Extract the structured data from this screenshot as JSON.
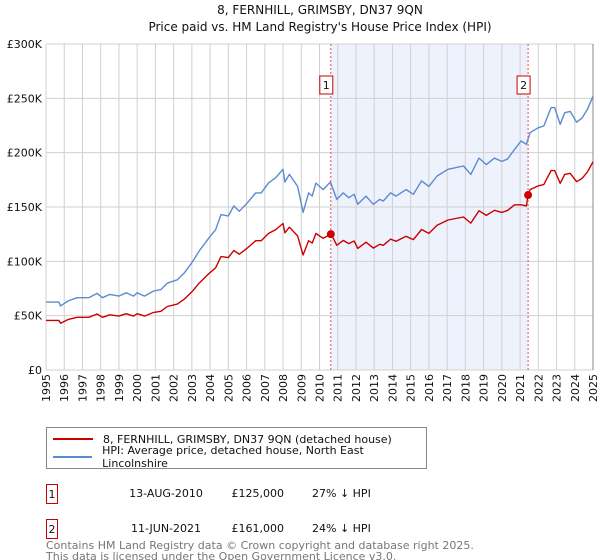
{
  "chart_data": {
    "type": "line",
    "title": "8, FERNHILL, GRIMSBY, DN37 9QN",
    "subtitle": "Price paid vs. HM Land Registry's House Price Index (HPI)",
    "xlabel": "",
    "ylabel": "",
    "xlim": [
      1995,
      2025
    ],
    "ylim": [
      0,
      300000
    ],
    "grid": true,
    "y_ticks": [
      {
        "v": 0,
        "label": "£0"
      },
      {
        "v": 50000,
        "label": "£50K"
      },
      {
        "v": 100000,
        "label": "£100K"
      },
      {
        "v": 150000,
        "label": "£150K"
      },
      {
        "v": 200000,
        "label": "£200K"
      },
      {
        "v": 250000,
        "label": "£250K"
      },
      {
        "v": 300000,
        "label": "£300K"
      }
    ],
    "x_ticks": [
      "1995",
      "1996",
      "1997",
      "1998",
      "1999",
      "2000",
      "2001",
      "2002",
      "2003",
      "2004",
      "2005",
      "2006",
      "2007",
      "2008",
      "2009",
      "2010",
      "2011",
      "2012",
      "2013",
      "2014",
      "2015",
      "2016",
      "2017",
      "2018",
      "2019",
      "2020",
      "2021",
      "2022",
      "2023",
      "2024",
      "2025"
    ],
    "shaded_range": [
      2010.62,
      2021.44
    ],
    "colors": {
      "property": "#cc0000",
      "hpi": "#5b8bd0",
      "shade": "#eef2fc",
      "marker_line": "#e05050"
    },
    "series": [
      {
        "name": "8, FERNHILL, GRIMSBY, DN37 9QN (detached house)",
        "color": "#cc0000",
        "points": [
          [
            1995,
            45600
          ],
          [
            1995.7,
            45600
          ],
          [
            1995.8,
            43000
          ],
          [
            1996.2,
            46400
          ],
          [
            1996.7,
            48500
          ],
          [
            1997.35,
            48500
          ],
          [
            1997.8,
            51500
          ],
          [
            1998.1,
            48500
          ],
          [
            1998.5,
            50800
          ],
          [
            1999,
            49600
          ],
          [
            1999.4,
            51800
          ],
          [
            1999.8,
            49600
          ],
          [
            2000,
            51800
          ],
          [
            2000.4,
            49600
          ],
          [
            2000.9,
            53000
          ],
          [
            2001.3,
            54000
          ],
          [
            2001.65,
            58400
          ],
          [
            2002.2,
            60600
          ],
          [
            2002.6,
            65400
          ],
          [
            2003,
            72000
          ],
          [
            2003.4,
            80000
          ],
          [
            2003.95,
            89000
          ],
          [
            2004.3,
            94000
          ],
          [
            2004.6,
            104400
          ],
          [
            2005,
            103400
          ],
          [
            2005.3,
            110000
          ],
          [
            2005.6,
            106600
          ],
          [
            2006.05,
            112400
          ],
          [
            2006.5,
            119000
          ],
          [
            2006.8,
            119000
          ],
          [
            2007.2,
            125600
          ],
          [
            2007.6,
            129200
          ],
          [
            2008,
            134800
          ],
          [
            2008.1,
            126300
          ],
          [
            2008.35,
            131400
          ],
          [
            2008.8,
            123400
          ],
          [
            2009.1,
            105800
          ],
          [
            2009.4,
            119000
          ],
          [
            2009.6,
            116800
          ],
          [
            2009.8,
            125600
          ],
          [
            2010.2,
            121200
          ],
          [
            2010.62,
            125000
          ],
          [
            2010.75,
            121300
          ],
          [
            2010.95,
            114800
          ],
          [
            2011.3,
            119300
          ],
          [
            2011.6,
            116300
          ],
          [
            2011.9,
            118700
          ],
          [
            2012.1,
            111900
          ],
          [
            2012.55,
            117600
          ],
          [
            2012.95,
            112200
          ],
          [
            2013.3,
            115700
          ],
          [
            2013.5,
            114800
          ],
          [
            2013.9,
            120500
          ],
          [
            2014.2,
            118400
          ],
          [
            2014.75,
            123000
          ],
          [
            2015.15,
            120000
          ],
          [
            2015.6,
            129300
          ],
          [
            2016,
            125700
          ],
          [
            2016.45,
            133200
          ],
          [
            2017.05,
            138000
          ],
          [
            2017.9,
            140800
          ],
          [
            2018.3,
            135200
          ],
          [
            2018.75,
            146600
          ],
          [
            2019.15,
            142300
          ],
          [
            2019.6,
            147000
          ],
          [
            2020,
            145000
          ],
          [
            2020.3,
            146700
          ],
          [
            2020.7,
            152000
          ],
          [
            2021.05,
            152000
          ],
          [
            2021.35,
            151000
          ],
          [
            2021.44,
            161000
          ],
          [
            2021.55,
            166000
          ],
          [
            2022,
            169500
          ],
          [
            2022.3,
            170600
          ],
          [
            2022.7,
            183500
          ],
          [
            2022.9,
            183500
          ],
          [
            2023.2,
            171800
          ],
          [
            2023.45,
            180000
          ],
          [
            2023.75,
            181000
          ],
          [
            2024.1,
            173300
          ],
          [
            2024.4,
            176300
          ],
          [
            2024.7,
            182400
          ],
          [
            2025,
            191500
          ]
        ]
      },
      {
        "name": "HPI: Average price, detached house, North East Lincolnshire",
        "color": "#5b8bd0",
        "points": [
          [
            1995,
            62500
          ],
          [
            1995.7,
            62500
          ],
          [
            1995.8,
            59000
          ],
          [
            1996.2,
            63500
          ],
          [
            1996.7,
            66500
          ],
          [
            1997.35,
            66500
          ],
          [
            1997.8,
            70500
          ],
          [
            1998.1,
            66500
          ],
          [
            1998.5,
            69600
          ],
          [
            1999,
            68000
          ],
          [
            1999.4,
            71000
          ],
          [
            1999.8,
            68000
          ],
          [
            2000,
            71000
          ],
          [
            2000.4,
            68000
          ],
          [
            2000.9,
            72700
          ],
          [
            2001.3,
            74000
          ],
          [
            2001.65,
            80000
          ],
          [
            2002.2,
            83000
          ],
          [
            2002.6,
            89600
          ],
          [
            2003,
            98800
          ],
          [
            2003.4,
            109500
          ],
          [
            2003.95,
            121800
          ],
          [
            2004.3,
            129000
          ],
          [
            2004.6,
            143000
          ],
          [
            2005,
            141700
          ],
          [
            2005.3,
            151000
          ],
          [
            2005.6,
            146000
          ],
          [
            2006.05,
            154000
          ],
          [
            2006.5,
            163000
          ],
          [
            2006.8,
            163000
          ],
          [
            2007.2,
            172000
          ],
          [
            2007.6,
            177000
          ],
          [
            2008,
            184700
          ],
          [
            2008.1,
            173000
          ],
          [
            2008.35,
            180000
          ],
          [
            2008.8,
            169000
          ],
          [
            2009.1,
            145000
          ],
          [
            2009.4,
            163000
          ],
          [
            2009.6,
            160000
          ],
          [
            2009.8,
            172000
          ],
          [
            2010.2,
            166000
          ],
          [
            2010.6,
            173000
          ],
          [
            2010.75,
            166000
          ],
          [
            2010.95,
            157000
          ],
          [
            2011.3,
            163000
          ],
          [
            2011.6,
            158600
          ],
          [
            2011.9,
            161700
          ],
          [
            2012.1,
            152500
          ],
          [
            2012.55,
            160000
          ],
          [
            2012.95,
            152500
          ],
          [
            2013.3,
            157000
          ],
          [
            2013.5,
            155500
          ],
          [
            2013.9,
            163000
          ],
          [
            2014.2,
            160000
          ],
          [
            2014.75,
            166000
          ],
          [
            2015.15,
            161700
          ],
          [
            2015.6,
            174000
          ],
          [
            2016,
            169000
          ],
          [
            2016.45,
            178500
          ],
          [
            2017.05,
            184700
          ],
          [
            2017.9,
            187700
          ],
          [
            2018.3,
            180000
          ],
          [
            2018.75,
            195000
          ],
          [
            2019.15,
            189000
          ],
          [
            2019.6,
            195000
          ],
          [
            2020,
            192000
          ],
          [
            2020.3,
            194000
          ],
          [
            2020.7,
            203000
          ],
          [
            2021.05,
            210700
          ],
          [
            2021.35,
            207700
          ],
          [
            2021.55,
            218400
          ],
          [
            2022,
            223000
          ],
          [
            2022.3,
            224500
          ],
          [
            2022.7,
            241500
          ],
          [
            2022.9,
            241500
          ],
          [
            2023.2,
            226000
          ],
          [
            2023.45,
            236800
          ],
          [
            2023.75,
            238000
          ],
          [
            2024.1,
            228000
          ],
          [
            2024.4,
            232000
          ],
          [
            2024.7,
            240000
          ],
          [
            2025,
            252000
          ]
        ]
      }
    ],
    "annotations": [
      {
        "label": "1",
        "x": 2010.62,
        "y": 125000
      },
      {
        "label": "2",
        "x": 2021.44,
        "y": 161000
      }
    ]
  },
  "legend": {
    "property_label": "8, FERNHILL, GRIMSBY, DN37 9QN (detached house)",
    "hpi_label": "HPI: Average price, detached house, North East Lincolnshire"
  },
  "transactions": [
    {
      "num": "1",
      "date": "13-AUG-2010",
      "price": "£125,000",
      "hpi": "27% ↓ HPI"
    },
    {
      "num": "2",
      "date": "11-JUN-2021",
      "price": "£161,000",
      "hpi": "24% ↓ HPI"
    }
  ],
  "footer": {
    "line1": "Contains HM Land Registry data © Crown copyright and database right 2025.",
    "line2": "This data is licensed under the Open Government Licence v3.0."
  }
}
